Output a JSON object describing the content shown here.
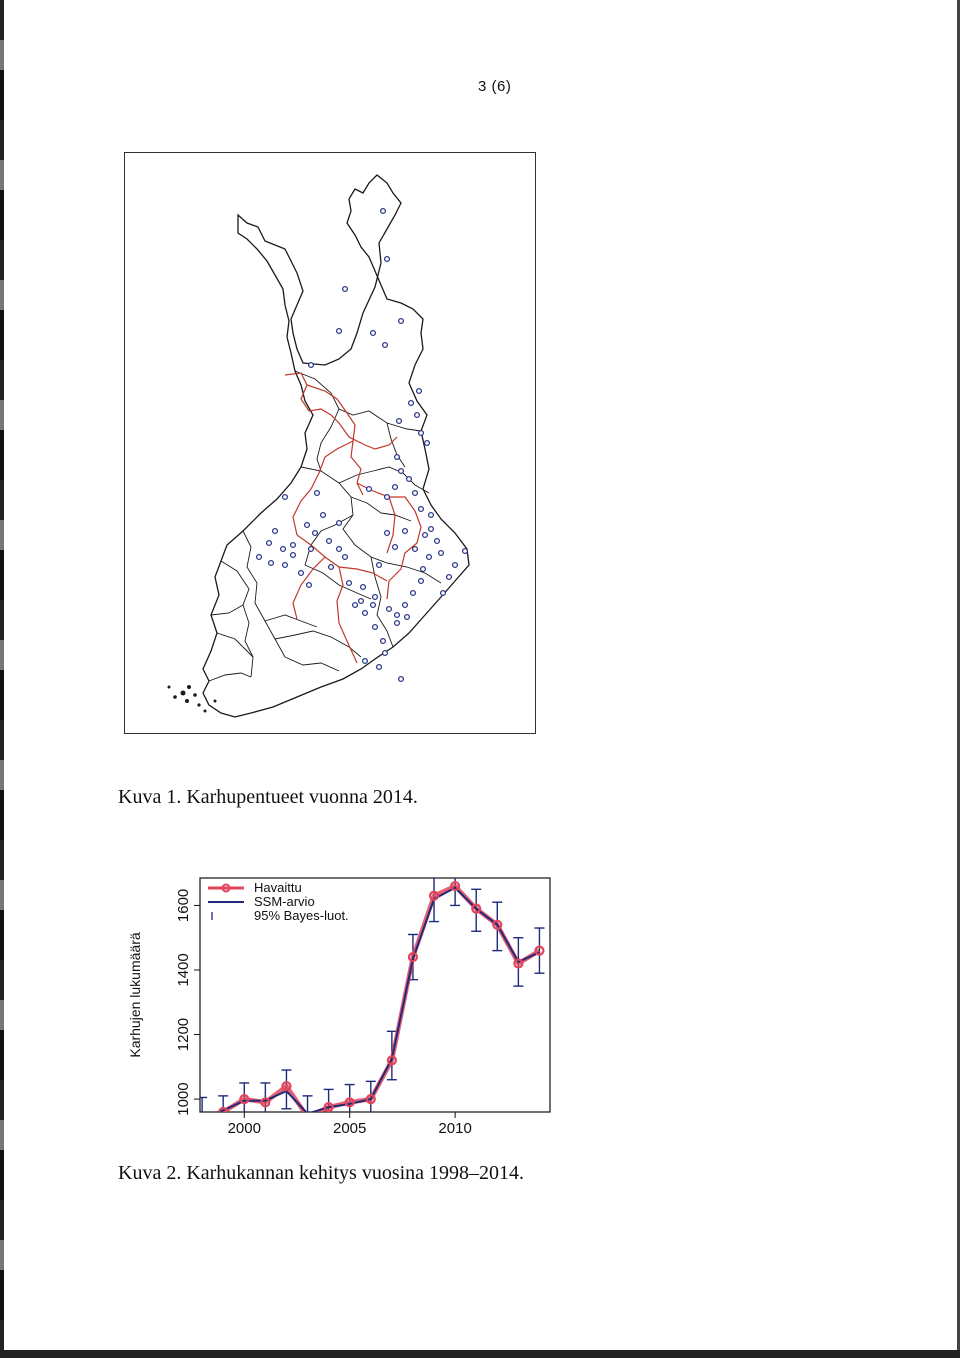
{
  "page": {
    "number": "3 (6)"
  },
  "figure1": {
    "caption": "Kuva 1. Karhupentueet vuonna 2014.",
    "colors": {
      "border": "#1a1a1a",
      "region": "#c0392b",
      "point": "#2b3a8c"
    }
  },
  "figure2": {
    "caption": "Kuva 2. Karhukannan kehitys vuosina 1998–2014."
  },
  "chart_data": {
    "type": "line",
    "title": "",
    "xlabel": "",
    "ylabel": "Karhujen lukumäärä",
    "xlim": [
      1997.9,
      2014.5
    ],
    "ylim": [
      960,
      1685
    ],
    "x_ticks": [
      2000,
      2005,
      2010
    ],
    "y_ticks": [
      1000,
      1200,
      1400,
      1600
    ],
    "grid": false,
    "legend_position": "top-left",
    "legend": [
      "Havaittu",
      "SSM-arvio",
      "95% Bayes-luot."
    ],
    "x": [
      1998,
      1999,
      2000,
      2001,
      2002,
      2003,
      2004,
      2005,
      2006,
      2007,
      2008,
      2009,
      2010,
      2011,
      2012,
      2013,
      2014
    ],
    "series": [
      {
        "name": "Havaittu",
        "color": "#e0455a",
        "values": [
          940,
          960,
          1000,
          990,
          1040,
          945,
          975,
          990,
          1000,
          1120,
          1440,
          1630,
          1660,
          1590,
          1540,
          1420,
          1460
        ]
      },
      {
        "name": "SSM-arvio",
        "color": "#1f2a7a",
        "values": [
          945,
          965,
          995,
          995,
          1025,
          955,
          975,
          985,
          1000,
          1125,
          1435,
          1620,
          1655,
          1590,
          1540,
          1425,
          1455
        ]
      },
      {
        "name": "95% Bayes-luot.",
        "color": "#1f2a7a",
        "lower": [
          890,
          920,
          940,
          935,
          970,
          900,
          920,
          935,
          945,
          1060,
          1370,
          1550,
          1600,
          1520,
          1460,
          1350,
          1390
        ],
        "upper": [
          1005,
          1010,
          1050,
          1050,
          1090,
          1010,
          1030,
          1045,
          1055,
          1210,
          1510,
          1700,
          1710,
          1650,
          1610,
          1500,
          1530
        ]
      }
    ]
  }
}
